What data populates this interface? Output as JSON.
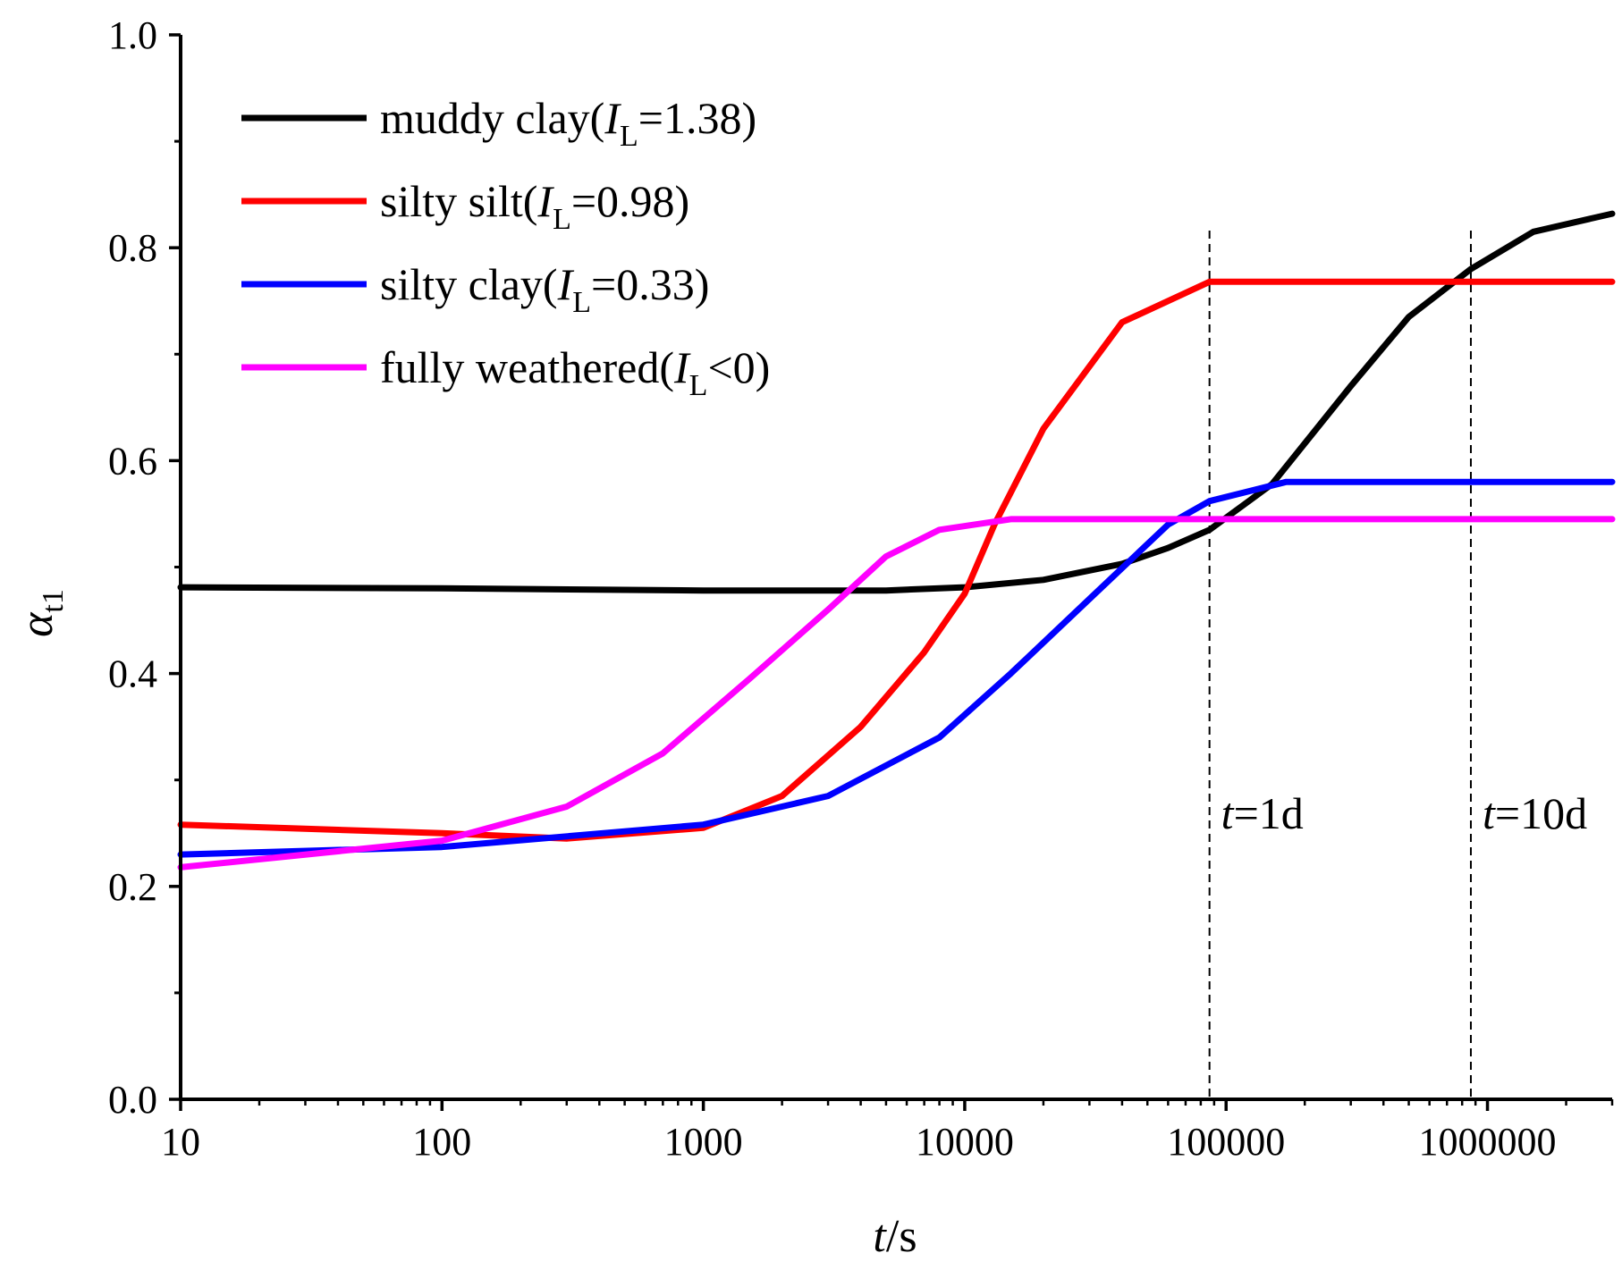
{
  "chart_data": {
    "type": "line",
    "xscale": "log",
    "xlim": [
      10,
      3000000
    ],
    "ylim": [
      0.0,
      1.0
    ],
    "xlabel": {
      "italic": "t",
      "rest": "/s"
    },
    "ylabel": {
      "main": "α",
      "sub": "t1"
    },
    "x_ticks": [
      10,
      100,
      1000,
      10000,
      100000,
      1000000
    ],
    "x_tick_labels": [
      "10",
      "100",
      "1000",
      "10000",
      "100000",
      "1000000"
    ],
    "y_ticks": [
      0.0,
      0.2,
      0.4,
      0.6,
      0.8,
      1.0
    ],
    "y_tick_labels": [
      "0.0",
      "0.2",
      "0.4",
      "0.6",
      "0.8",
      "1.0"
    ],
    "legend_position": "top-left",
    "series": [
      {
        "name": "muddy clay(IL=1.38)",
        "legend": {
          "prefix": "muddy clay(",
          "var": "I",
          "sub": "L",
          "suffix": "=1.38)"
        },
        "color": "#000000",
        "points": [
          [
            10,
            0.481
          ],
          [
            100,
            0.48
          ],
          [
            1000,
            0.478
          ],
          [
            5000,
            0.478
          ],
          [
            10000,
            0.481
          ],
          [
            20000,
            0.488
          ],
          [
            40000,
            0.503
          ],
          [
            60000,
            0.518
          ],
          [
            86400,
            0.535
          ],
          [
            150000,
            0.578
          ],
          [
            300000,
            0.67
          ],
          [
            500000,
            0.735
          ],
          [
            864000,
            0.78
          ],
          [
            1500000,
            0.815
          ],
          [
            3000000,
            0.832
          ]
        ]
      },
      {
        "name": "silty silt(IL=0.98)",
        "legend": {
          "prefix": "silty silt(",
          "var": "I",
          "sub": "L",
          "suffix": "=0.98)"
        },
        "color": "#ff0000",
        "points": [
          [
            10,
            0.258
          ],
          [
            100,
            0.25
          ],
          [
            300,
            0.245
          ],
          [
            1000,
            0.255
          ],
          [
            2000,
            0.285
          ],
          [
            4000,
            0.35
          ],
          [
            7000,
            0.42
          ],
          [
            10000,
            0.475
          ],
          [
            13000,
            0.54
          ],
          [
            20000,
            0.63
          ],
          [
            40000,
            0.73
          ],
          [
            86400,
            0.768
          ],
          [
            3000000,
            0.768
          ]
        ]
      },
      {
        "name": "silty clay(IL=0.33)",
        "legend": {
          "prefix": "silty clay(",
          "var": "I",
          "sub": "L",
          "suffix": "=0.33)"
        },
        "color": "#0000ff",
        "points": [
          [
            10,
            0.23
          ],
          [
            100,
            0.237
          ],
          [
            1000,
            0.258
          ],
          [
            3000,
            0.285
          ],
          [
            8000,
            0.34
          ],
          [
            15000,
            0.4
          ],
          [
            30000,
            0.47
          ],
          [
            60000,
            0.54
          ],
          [
            86400,
            0.562
          ],
          [
            170000,
            0.58
          ],
          [
            3000000,
            0.58
          ]
        ]
      },
      {
        "name": "fully weathered(IL<0)",
        "legend": {
          "prefix": "fully weathered(",
          "var": "I",
          "sub": "L",
          "suffix": "<0)"
        },
        "color": "#ff00ff",
        "points": [
          [
            10,
            0.218
          ],
          [
            100,
            0.243
          ],
          [
            300,
            0.275
          ],
          [
            700,
            0.325
          ],
          [
            1500,
            0.395
          ],
          [
            3000,
            0.46
          ],
          [
            5000,
            0.51
          ],
          [
            8000,
            0.535
          ],
          [
            15000,
            0.545
          ],
          [
            3000000,
            0.545
          ]
        ]
      }
    ],
    "annotations": [
      {
        "x": 86400,
        "label_italic": "t",
        "label_rest": "=1d"
      },
      {
        "x": 864000,
        "label_italic": "t",
        "label_rest": "=10d"
      }
    ]
  }
}
